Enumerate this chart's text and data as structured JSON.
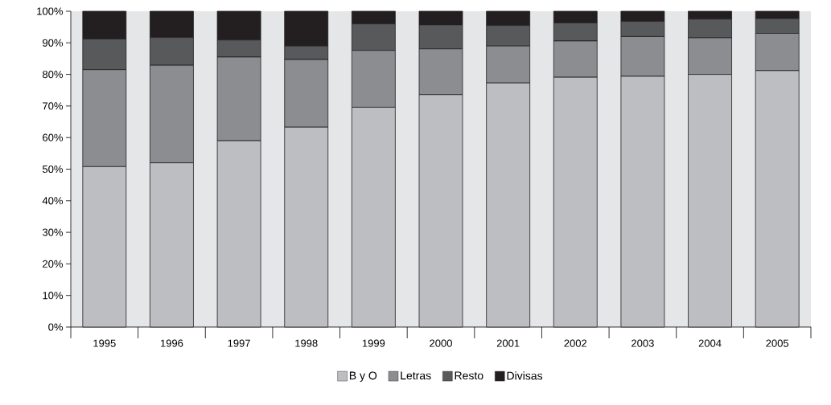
{
  "chart_data": {
    "type": "bar",
    "stacked": true,
    "categories": [
      "1995",
      "1996",
      "1997",
      "1998",
      "1999",
      "2000",
      "2001",
      "2002",
      "2003",
      "2004",
      "2005"
    ],
    "series": [
      {
        "name": "B y O",
        "color": "#bdbec2",
        "values": [
          50.8,
          52.0,
          59.0,
          63.3,
          69.6,
          73.6,
          77.3,
          79.1,
          79.4,
          80.0,
          81.2
        ]
      },
      {
        "name": "Letras",
        "color": "#8c8d91",
        "values": [
          30.7,
          30.9,
          26.5,
          21.4,
          18.0,
          14.5,
          11.7,
          11.5,
          12.6,
          11.6,
          11.8
        ]
      },
      {
        "name": "Resto",
        "color": "#58595b",
        "values": [
          9.7,
          8.8,
          5.4,
          4.3,
          8.4,
          7.6,
          6.5,
          5.7,
          4.8,
          5.9,
          4.7
        ]
      },
      {
        "name": "Divisas",
        "color": "#231f20",
        "values": [
          8.8,
          8.3,
          9.1,
          11.0,
          4.0,
          4.3,
          4.5,
          3.7,
          3.2,
          2.5,
          2.3
        ]
      }
    ],
    "ylim": [
      0,
      100
    ],
    "yticks": [
      {
        "value": 0,
        "label": "0%"
      },
      {
        "value": 10,
        "label": "10%"
      },
      {
        "value": 20,
        "label": "20%"
      },
      {
        "value": 30,
        "label": "30%"
      },
      {
        "value": 40,
        "label": "40%"
      },
      {
        "value": 50,
        "label": "50%"
      },
      {
        "value": 60,
        "label": "60%"
      },
      {
        "value": 70,
        "label": "70%"
      },
      {
        "value": 80,
        "label": "80%"
      },
      {
        "value": 90,
        "label": "90%"
      },
      {
        "value": 100,
        "label": "100%"
      }
    ],
    "legend": "bottom"
  }
}
